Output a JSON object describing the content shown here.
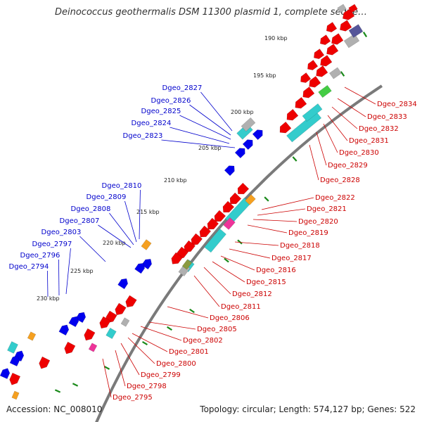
{
  "title": "Deinococcus geothermalis DSM 11300 plasmid 1, complete seque…",
  "footer": {
    "accession": "Accession: NC_008010",
    "summary": "Topology: circular; Length: 574,127 bp; Genes: 522"
  },
  "colors": {
    "backbone": "#7a7a7a",
    "tick": "#1a8a1a",
    "forward_label": "#0000cc",
    "reverse_label": "#cc0000",
    "forward_arrow": "#0000ee",
    "reverse_arrow": "#ee0000",
    "cyan": "#33cccc",
    "gray": "#b0b0b0",
    "orange": "#f5a020",
    "green": "#44cc44",
    "pink": "#ee3399",
    "purple": "#555599",
    "olive": "#8a9a40"
  },
  "kbp_labels": [
    "190 kbp",
    "195 kbp",
    "200 kbp",
    "205 kbp",
    "210 kbp",
    "215 kbp",
    "220 kbp",
    "225 kbp",
    "230 kbp"
  ],
  "forward_genes": [
    "Dgeo_2827",
    "Dgeo_2826",
    "Dgeo_2825",
    "Dgeo_2824",
    "Dgeo_2823",
    "Dgeo_2810",
    "Dgeo_2809",
    "Dgeo_2808",
    "Dgeo_2807",
    "Dgeo_2803",
    "Dgeo_2797",
    "Dgeo_2796",
    "Dgeo_2794"
  ],
  "reverse_genes": [
    "Dgeo_2834",
    "Dgeo_2833",
    "Dgeo_2832",
    "Dgeo_2831",
    "Dgeo_2830",
    "Dgeo_2829",
    "Dgeo_2828",
    "Dgeo_2822",
    "Dgeo_2821",
    "Dgeo_2820",
    "Dgeo_2819",
    "Dgeo_2818",
    "Dgeo_2817",
    "Dgeo_2816",
    "Dgeo_2815",
    "Dgeo_2812",
    "Dgeo_2811",
    "Dgeo_2806",
    "Dgeo_2805",
    "Dgeo_2802",
    "Dgeo_2801",
    "Dgeo_2800",
    "Dgeo_2799",
    "Dgeo_2798",
    "Dgeo_2795"
  ]
}
